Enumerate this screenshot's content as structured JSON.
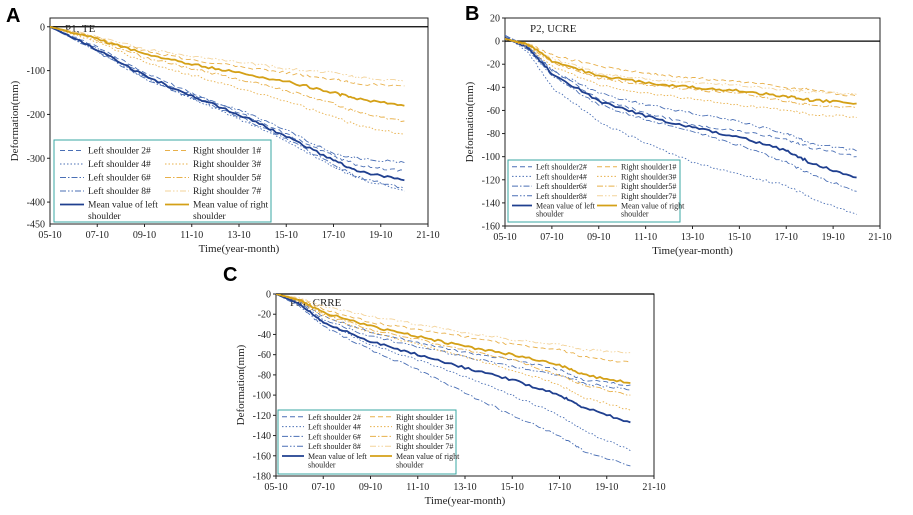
{
  "chart_data": [
    {
      "panel": "A",
      "type": "line",
      "title": "P1, TE",
      "xlabel": "Time(year-month)",
      "ylabel": "Deformation(mm)",
      "xlim": [
        0,
        16
      ],
      "ylim": [
        -450,
        20
      ],
      "x_ticks": [
        "05-10",
        "07-10",
        "09-10",
        "11-10",
        "13-10",
        "15-10",
        "17-10",
        "19-10",
        "21-10"
      ],
      "y_ticks": [
        0,
        -100,
        -200,
        -300,
        -400
      ],
      "y_tick_labels": [
        "0",
        "-100",
        "-200",
        "-300",
        "-400"
      ],
      "show_extra_bottom_tick": true,
      "extra_bottom_tick_label": "-450",
      "series": [
        {
          "name": "Left shoulder 2#",
          "style": "dash",
          "color": "#4a6fb5",
          "x": [
            0,
            2,
            4,
            6,
            8,
            10,
            12,
            13,
            15
          ],
          "y": [
            0,
            -45,
            -105,
            -150,
            -195,
            -245,
            -295,
            -315,
            -330
          ]
        },
        {
          "name": "Left shoulder 4#",
          "style": "dot",
          "color": "#4a6fb5",
          "x": [
            0,
            2,
            4,
            6,
            8,
            10,
            12,
            13,
            15
          ],
          "y": [
            0,
            -55,
            -115,
            -165,
            -210,
            -260,
            -320,
            -345,
            -375
          ]
        },
        {
          "name": "Left shoulder 6#",
          "style": "dashdot",
          "color": "#4a6fb5",
          "x": [
            0,
            2,
            4,
            6,
            8,
            10,
            12,
            13,
            15
          ],
          "y": [
            0,
            -58,
            -118,
            -162,
            -205,
            -255,
            -315,
            -342,
            -368
          ]
        },
        {
          "name": "Left shoulder 8#",
          "style": "dashdotdot",
          "color": "#4a6fb5",
          "x": [
            0,
            2,
            4,
            6,
            8,
            10,
            12,
            13,
            15
          ],
          "y": [
            0,
            -50,
            -112,
            -155,
            -190,
            -235,
            -290,
            -300,
            -310
          ]
        },
        {
          "name": "Mean value of left shoulder",
          "style": "solid",
          "color": "#1f3f8f",
          "x": [
            0,
            2,
            4,
            6,
            8,
            10,
            12,
            13,
            15
          ],
          "y": [
            0,
            -52,
            -112,
            -158,
            -200,
            -250,
            -305,
            -330,
            -350
          ]
        },
        {
          "name": "Right shoulder 1#",
          "style": "dash",
          "color": "#e8b04a",
          "x": [
            0,
            2,
            4,
            6,
            8,
            10,
            12,
            13,
            15
          ],
          "y": [
            0,
            -25,
            -55,
            -75,
            -90,
            -105,
            -120,
            -130,
            -135
          ]
        },
        {
          "name": "Right shoulder 3#",
          "style": "dot",
          "color": "#e8b04a",
          "x": [
            0,
            2,
            4,
            6,
            8,
            10,
            12,
            13,
            15
          ],
          "y": [
            0,
            -35,
            -80,
            -110,
            -140,
            -170,
            -205,
            -225,
            -245
          ]
        },
        {
          "name": "Right shoulder 5#",
          "style": "dashdot",
          "color": "#e8b04a",
          "x": [
            0,
            2,
            4,
            6,
            8,
            10,
            12,
            13,
            15
          ],
          "y": [
            0,
            -30,
            -70,
            -95,
            -120,
            -145,
            -175,
            -195,
            -215
          ]
        },
        {
          "name": "Right shoulder 7#",
          "style": "dashdotdot",
          "color": "#f3d39a",
          "x": [
            0,
            2,
            4,
            6,
            8,
            10,
            12,
            13,
            15
          ],
          "y": [
            0,
            -22,
            -50,
            -68,
            -80,
            -95,
            -105,
            -115,
            -125
          ]
        },
        {
          "name": "Mean value of right shoulder",
          "style": "solid",
          "color": "#d4a017",
          "x": [
            0,
            2,
            4,
            6,
            8,
            10,
            12,
            13,
            15
          ],
          "y": [
            0,
            -28,
            -62,
            -85,
            -105,
            -125,
            -150,
            -165,
            -180
          ]
        }
      ]
    },
    {
      "panel": "B",
      "type": "line",
      "title": "P2, UCRE",
      "xlabel": "Time(year-month)",
      "ylabel": "Deformation(mm)",
      "xlim": [
        0,
        16
      ],
      "ylim": [
        -160,
        20
      ],
      "x_ticks": [
        "05-10",
        "07-10",
        "09-10",
        "11-10",
        "13-10",
        "15-10",
        "17-10",
        "19-10",
        "21-10"
      ],
      "y_ticks": [
        20,
        0,
        -20,
        -40,
        -60,
        -80,
        -100,
        -120,
        -140,
        -160
      ],
      "y_tick_labels": [
        "20",
        "0",
        "-20",
        "-40",
        "-60",
        "-80",
        "-100",
        "-120",
        "-140",
        "-160"
      ],
      "series": [
        {
          "name": "Left shoulder2#",
          "style": "dash",
          "color": "#4a6fb5",
          "x": [
            0,
            1,
            2,
            4,
            6,
            8,
            10,
            12,
            13,
            15
          ],
          "y": [
            5,
            -5,
            -25,
            -50,
            -62,
            -72,
            -78,
            -85,
            -92,
            -100
          ]
        },
        {
          "name": "Left shoulder4#",
          "style": "dot",
          "color": "#4a6fb5",
          "x": [
            0,
            1,
            2,
            4,
            6,
            8,
            10,
            12,
            13,
            15
          ],
          "y": [
            5,
            -10,
            -40,
            -70,
            -88,
            -105,
            -115,
            -125,
            -135,
            -150
          ]
        },
        {
          "name": "Left shoulder6#",
          "style": "dashdot",
          "color": "#4a6fb5",
          "x": [
            0,
            1,
            2,
            4,
            6,
            8,
            10,
            12,
            13,
            15
          ],
          "y": [
            5,
            -8,
            -30,
            -55,
            -68,
            -78,
            -90,
            -105,
            -115,
            -130
          ]
        },
        {
          "name": "Left shoulder8#",
          "style": "dashdotdot",
          "color": "#4a6fb5",
          "x": [
            0,
            1,
            2,
            4,
            6,
            8,
            10,
            12,
            13,
            15
          ],
          "y": [
            5,
            -5,
            -25,
            -45,
            -55,
            -62,
            -70,
            -80,
            -88,
            -95
          ]
        },
        {
          "name": "Mean value of left shoulder",
          "style": "solid",
          "color": "#1f3f8f",
          "x": [
            0,
            1,
            2,
            4,
            6,
            8,
            10,
            12,
            13,
            15
          ],
          "y": [
            3,
            -6,
            -28,
            -52,
            -65,
            -75,
            -83,
            -95,
            -105,
            -118
          ]
        },
        {
          "name": "Right shoulder1#",
          "style": "dash",
          "color": "#e8b04a",
          "x": [
            0,
            1,
            2,
            4,
            6,
            8,
            10,
            12,
            13,
            15
          ],
          "y": [
            2,
            -2,
            -12,
            -22,
            -28,
            -32,
            -35,
            -40,
            -42,
            -48
          ]
        },
        {
          "name": "Right shoulder3#",
          "style": "dot",
          "color": "#e8b04a",
          "x": [
            0,
            1,
            2,
            4,
            6,
            8,
            10,
            12,
            13,
            15
          ],
          "y": [
            2,
            -5,
            -22,
            -38,
            -45,
            -50,
            -55,
            -60,
            -63,
            -66
          ]
        },
        {
          "name": "Right shoulder5#",
          "style": "dashdot",
          "color": "#e8b04a",
          "x": [
            0,
            1,
            2,
            4,
            6,
            8,
            10,
            12,
            13,
            15
          ],
          "y": [
            2,
            -4,
            -18,
            -32,
            -38,
            -42,
            -45,
            -52,
            -55,
            -58
          ]
        },
        {
          "name": "Right shoulder7#",
          "style": "dashdotdot",
          "color": "#f3d39a",
          "x": [
            0,
            1,
            2,
            4,
            6,
            8,
            10,
            12,
            13,
            15
          ],
          "y": [
            2,
            -3,
            -15,
            -28,
            -33,
            -36,
            -38,
            -42,
            -44,
            -46
          ]
        },
        {
          "name": "Mean value of right shoulder",
          "style": "solid",
          "color": "#d4a017",
          "x": [
            0,
            1,
            2,
            4,
            6,
            8,
            10,
            12,
            13,
            15
          ],
          "y": [
            2,
            -3,
            -17,
            -30,
            -36,
            -40,
            -43,
            -48,
            -51,
            -54
          ]
        }
      ]
    },
    {
      "panel": "C",
      "type": "line",
      "title": "P3，CRRE",
      "xlabel": "Time(year-month)",
      "ylabel": "Deformation(mm)",
      "xlim": [
        0,
        16
      ],
      "ylim": [
        -180,
        0
      ],
      "x_ticks": [
        "05-10",
        "07-10",
        "09-10",
        "11-10",
        "13-10",
        "15-10",
        "17-10",
        "19-10",
        "21-10"
      ],
      "y_ticks": [
        0,
        -20,
        -40,
        -60,
        -80,
        -100,
        -120,
        -140,
        -160,
        -180
      ],
      "y_tick_labels": [
        "0",
        "-20",
        "-40",
        "-60",
        "-80",
        "-100",
        "-120",
        "-140",
        "-160",
        "-180"
      ],
      "series": [
        {
          "name": "Left shoulder 2#",
          "style": "dash",
          "color": "#4a6fb5",
          "x": [
            0,
            1,
            2,
            4,
            6,
            8,
            10,
            12,
            13,
            15
          ],
          "y": [
            0,
            -8,
            -22,
            -38,
            -48,
            -58,
            -65,
            -75,
            -85,
            -90
          ]
        },
        {
          "name": "Left shoulder 4#",
          "style": "dot",
          "color": "#4a6fb5",
          "x": [
            0,
            1,
            2,
            4,
            6,
            8,
            10,
            12,
            13,
            15
          ],
          "y": [
            0,
            -10,
            -28,
            -50,
            -65,
            -82,
            -100,
            -120,
            -135,
            -155
          ]
        },
        {
          "name": "Left shoulder 6#",
          "style": "dashdot",
          "color": "#4a6fb5",
          "x": [
            0,
            1,
            2,
            4,
            6,
            8,
            10,
            12,
            13,
            15
          ],
          "y": [
            0,
            -12,
            -32,
            -55,
            -75,
            -98,
            -120,
            -140,
            -155,
            -170
          ]
        },
        {
          "name": "Left shoulder 8#",
          "style": "dashdotdot",
          "color": "#4a6fb5",
          "x": [
            0,
            1,
            2,
            4,
            6,
            8,
            10,
            12,
            13,
            15
          ],
          "y": [
            0,
            -9,
            -25,
            -42,
            -52,
            -62,
            -72,
            -80,
            -88,
            -95
          ]
        },
        {
          "name": "Mean value of left shoulder",
          "style": "solid",
          "color": "#1f3f8f",
          "x": [
            0,
            1,
            2,
            4,
            6,
            8,
            10,
            12,
            13,
            15
          ],
          "y": [
            0,
            -10,
            -28,
            -47,
            -60,
            -73,
            -85,
            -100,
            -112,
            -127
          ]
        },
        {
          "name": "Right shoulder 1#",
          "style": "dash",
          "color": "#e8b04a",
          "x": [
            0,
            1,
            2,
            4,
            6,
            8,
            10,
            12,
            13,
            15
          ],
          "y": [
            0,
            -5,
            -15,
            -28,
            -35,
            -42,
            -50,
            -55,
            -62,
            -68
          ]
        },
        {
          "name": "Right shoulder 3#",
          "style": "dot",
          "color": "#e8b04a",
          "x": [
            0,
            1,
            2,
            4,
            6,
            8,
            10,
            12,
            13,
            15
          ],
          "y": [
            0,
            -8,
            -22,
            -38,
            -50,
            -62,
            -75,
            -90,
            -102,
            -115
          ]
        },
        {
          "name": "Right shoulder 5#",
          "style": "dashdot",
          "color": "#e8b04a",
          "x": [
            0,
            1,
            2,
            4,
            6,
            8,
            10,
            12,
            13,
            15
          ],
          "y": [
            0,
            -7,
            -20,
            -35,
            -45,
            -55,
            -65,
            -80,
            -90,
            -100
          ]
        },
        {
          "name": "Right shoulder 7#",
          "style": "dashdotdot",
          "color": "#f3d39a",
          "x": [
            0,
            1,
            2,
            4,
            6,
            8,
            10,
            12,
            13,
            15
          ],
          "y": [
            0,
            -4,
            -12,
            -22,
            -30,
            -38,
            -45,
            -50,
            -55,
            -58
          ]
        },
        {
          "name": "Mean value of right shoulder",
          "style": "solid",
          "color": "#d4a017",
          "x": [
            0,
            1,
            2,
            4,
            6,
            8,
            10,
            12,
            13,
            15
          ],
          "y": [
            0,
            -6,
            -18,
            -32,
            -42,
            -52,
            -60,
            -70,
            -80,
            -88
          ]
        }
      ]
    }
  ]
}
